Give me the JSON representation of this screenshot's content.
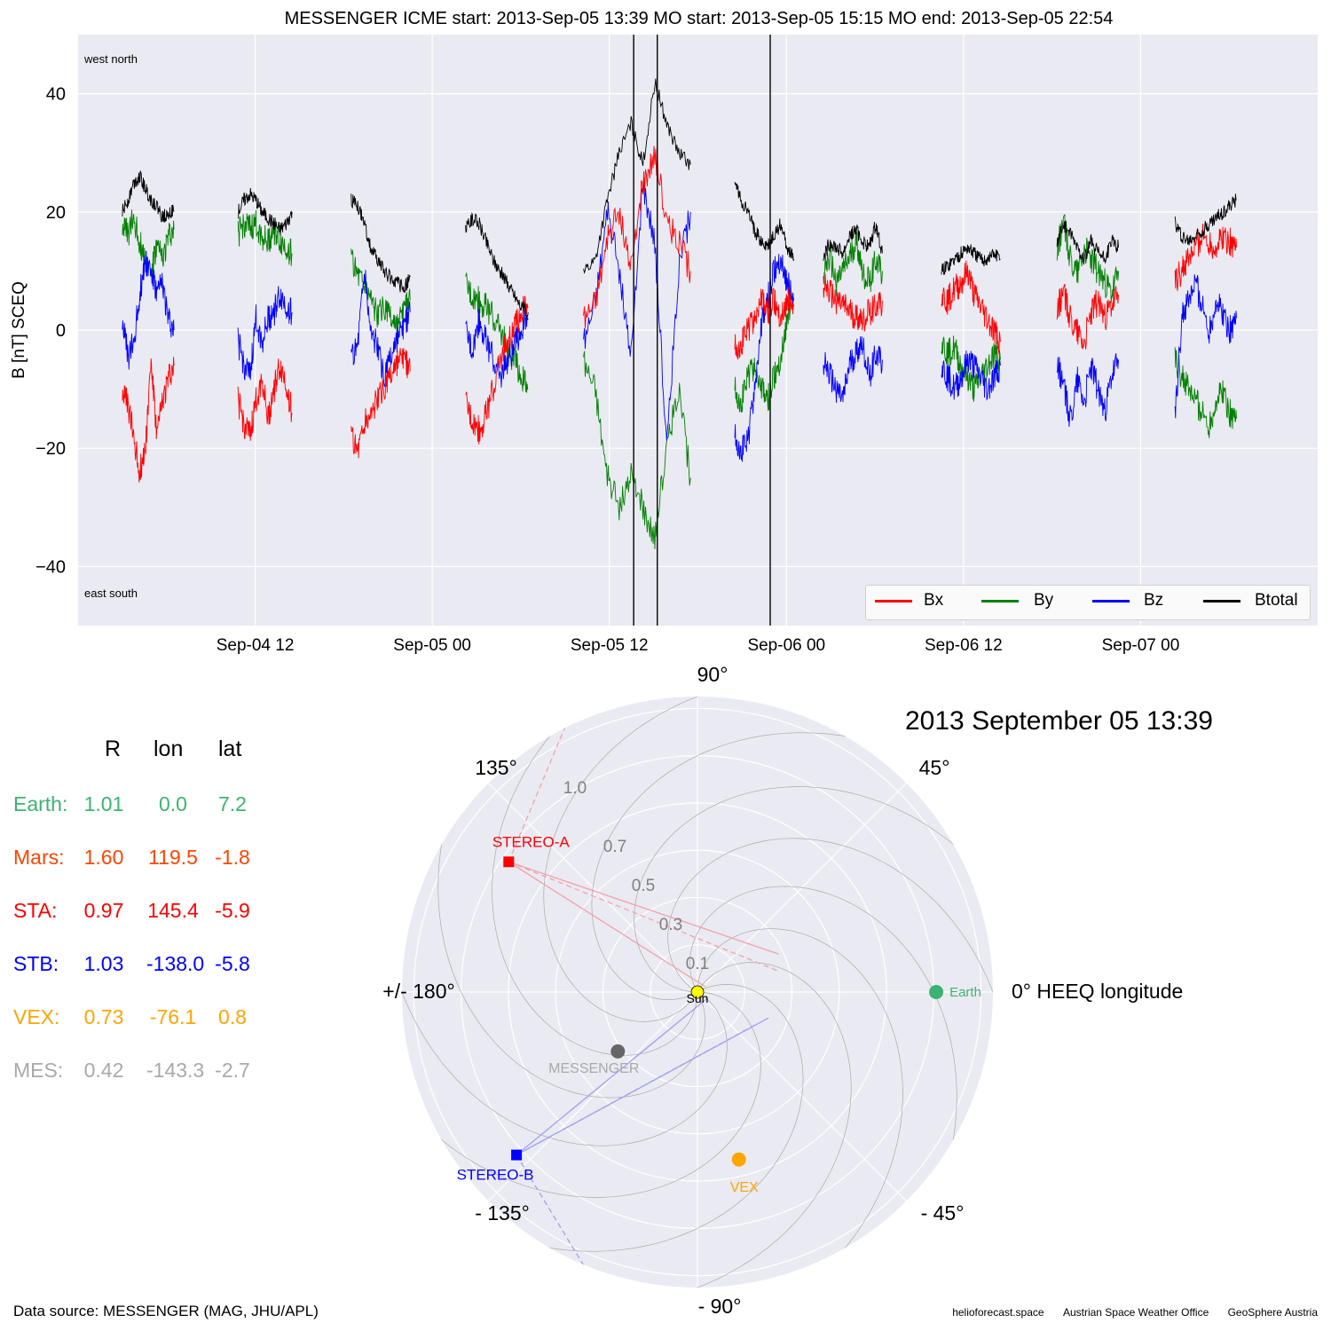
{
  "title": "MESSENGER    ICME start: 2013-Sep-05 13:39   MO start: 2013-Sep-05 15:15   MO end: 2013-Sep-05 22:54",
  "ylabel": "B [nT] SCEQ",
  "corner_labels": {
    "top": "west    north",
    "bottom": "east    south"
  },
  "legend": [
    "Bx",
    "By",
    "Bz",
    "Btotal"
  ],
  "colors": {
    "Bx": "#ff0000",
    "By": "#008000",
    "Bz": "#0000ff",
    "Btotal": "#000000",
    "Earth": "#3cb371",
    "Mars": "#ff4500",
    "STA": "#ff0000",
    "STB": "#0000ff",
    "VEX": "#ffa500",
    "MES": "#a9a9a9"
  },
  "date_title": "2013 September 05  13:39",
  "data_source": "Data source: MESSENGER (MAG, JHU/APL)",
  "credits": [
    "helioforecast.space",
    "Austrian Space Weather Office",
    "GeoSphere Austria"
  ],
  "table": {
    "headers": [
      "R",
      "lon",
      "lat"
    ],
    "rows": [
      {
        "name": "Earth:",
        "R": "1.01",
        "lon": "0.0",
        "lat": "7.2",
        "color": "#3cb371"
      },
      {
        "name": "Mars:",
        "R": "1.60",
        "lon": "119.5",
        "lat": "-1.8",
        "color": "#ff4500"
      },
      {
        "name": "STA:",
        "R": "0.97",
        "lon": "145.4",
        "lat": "-5.9",
        "color": "#ff0000"
      },
      {
        "name": "STB:",
        "R": "1.03",
        "lon": "-138.0",
        "lat": "-5.8",
        "color": "#0000ff"
      },
      {
        "name": "VEX:",
        "R": "0.73",
        "lon": "-76.1",
        "lat": "0.8",
        "color": "#ffa500"
      },
      {
        "name": "MES:",
        "R": "0.42",
        "lon": "-143.3",
        "lat": "-2.7",
        "color": "#a9a9a9"
      }
    ]
  },
  "chart_data": [
    {
      "type": "line",
      "title": "MESSENGER    ICME start: 2013-Sep-05 13:39   MO start: 2013-Sep-05 15:15   MO end: 2013-Sep-05 22:54",
      "ylabel": "B [nT] SCEQ",
      "xlabel": "",
      "x_range": [
        "2013-09-04 00:00",
        "2013-09-07 12:00"
      ],
      "xticks": [
        "Sep-04 12",
        "Sep-05 00",
        "Sep-05 12",
        "Sep-06 00",
        "Sep-06 12",
        "Sep-07 00"
      ],
      "xtick_times": [
        "2013-09-04 12:00",
        "2013-09-05 00:00",
        "2013-09-05 12:00",
        "2013-09-06 00:00",
        "2013-09-06 12:00",
        "2013-09-07 00:00"
      ],
      "ylim": [
        -50,
        50
      ],
      "yticks": [
        -40,
        -20,
        0,
        20,
        40
      ],
      "grid": true,
      "legend_position": "lower-right",
      "event_lines": [
        "2013-09-05 13:39",
        "2013-09-05 15:15",
        "2013-09-05 22:54"
      ],
      "segments": [
        {
          "start": "2013-09-04 03:00",
          "end": "2013-09-04 06:30",
          "Btotal": [
            20,
            22,
            25,
            26,
            24,
            22,
            21,
            19,
            20,
            20
          ],
          "Bx": [
            -10,
            -13,
            -18,
            -24,
            -20,
            -5,
            -18,
            -12,
            -8,
            -6
          ],
          "By": [
            18,
            16,
            19,
            15,
            12,
            10,
            14,
            12,
            16,
            17
          ],
          "Bz": [
            2,
            -5,
            -2,
            6,
            12,
            10,
            6,
            8,
            2,
            0
          ]
        },
        {
          "start": "2013-09-04 10:50",
          "end": "2013-09-04 14:30",
          "Btotal": [
            20,
            22,
            23,
            22,
            20,
            19,
            18,
            17,
            18,
            20
          ],
          "Bx": [
            -12,
            -16,
            -18,
            -12,
            -8,
            -15,
            -10,
            -6,
            -9,
            -14
          ],
          "By": [
            16,
            18,
            17,
            18,
            16,
            15,
            17,
            15,
            14,
            13
          ],
          "Bz": [
            -2,
            -6,
            -8,
            2,
            -2,
            2,
            3,
            6,
            4,
            3
          ]
        },
        {
          "start": "2013-09-04 18:30",
          "end": "2013-09-04 22:30",
          "Btotal": [
            22,
            21,
            18,
            14,
            12,
            10,
            9,
            8,
            7,
            9
          ],
          "Bx": [
            -18,
            -20,
            -16,
            -14,
            -12,
            -10,
            -8,
            -6,
            -5,
            -7
          ],
          "By": [
            12,
            10,
            8,
            6,
            2,
            4,
            2,
            0,
            3,
            5
          ],
          "Bz": [
            -5,
            -2,
            10,
            0,
            -3,
            -8,
            -5,
            -2,
            0,
            3
          ]
        },
        {
          "start": "2013-09-05 02:15",
          "end": "2013-09-05 06:30",
          "Btotal": [
            17,
            19,
            18,
            15,
            12,
            10,
            8,
            6,
            4,
            3
          ],
          "Bx": [
            -12,
            -15,
            -17,
            -14,
            -10,
            -5,
            -2,
            0,
            3,
            4
          ],
          "By": [
            8,
            6,
            5,
            4,
            2,
            0,
            -3,
            -5,
            -8,
            -10
          ],
          "Bz": [
            0,
            -3,
            2,
            -2,
            -5,
            -8,
            -5,
            -3,
            0,
            2
          ]
        },
        {
          "start": "2013-09-05 10:15",
          "end": "2013-09-05 17:30",
          "Btotal": [
            10,
            12,
            22,
            30,
            35,
            28,
            42,
            35,
            30,
            28
          ],
          "Bx": [
            2,
            5,
            15,
            20,
            10,
            25,
            30,
            18,
            15,
            10
          ],
          "By": [
            -5,
            -10,
            -25,
            -30,
            -25,
            -30,
            -35,
            -20,
            -10,
            -25
          ],
          "Bz": [
            -2,
            5,
            20,
            10,
            -5,
            25,
            15,
            -20,
            10,
            20
          ]
        },
        {
          "start": "2013-09-05 20:30",
          "end": "2013-09-06 00:30",
          "Btotal": [
            25,
            22,
            20,
            17,
            15,
            14,
            16,
            18,
            14,
            12
          ],
          "Bx": [
            -3,
            -2,
            0,
            2,
            5,
            3,
            5,
            2,
            5,
            4
          ],
          "By": [
            -10,
            -12,
            -8,
            -6,
            -10,
            -12,
            -8,
            -5,
            2,
            6
          ],
          "Bz": [
            -18,
            -20,
            -19,
            -10,
            0,
            5,
            10,
            12,
            8,
            5
          ]
        },
        {
          "start": "2013-09-06 02:30",
          "end": "2013-09-06 06:30",
          "Btotal": [
            12,
            15,
            14,
            13,
            16,
            17,
            15,
            14,
            18,
            13
          ],
          "Bx": [
            8,
            6,
            5,
            4,
            3,
            2,
            2,
            3,
            4,
            5
          ],
          "By": [
            10,
            12,
            8,
            10,
            12,
            15,
            10,
            8,
            12,
            10
          ],
          "Bz": [
            -5,
            -8,
            -10,
            -12,
            -6,
            -4,
            -2,
            -8,
            -4,
            -5
          ]
        },
        {
          "start": "2013-09-06 10:30",
          "end": "2013-09-06 14:30",
          "Btotal": [
            10,
            11,
            12,
            13,
            14,
            13,
            12,
            12,
            13,
            12
          ],
          "Bx": [
            6,
            5,
            7,
            8,
            10,
            6,
            4,
            2,
            0,
            -2
          ],
          "By": [
            -2,
            -4,
            -3,
            -6,
            -8,
            -10,
            -8,
            -6,
            -4,
            -5
          ],
          "Bz": [
            -6,
            -8,
            -10,
            -8,
            -5,
            -6,
            -8,
            -10,
            -8,
            -6
          ]
        },
        {
          "start": "2013-09-06 18:20",
          "end": "2013-09-06 22:30",
          "Btotal": [
            15,
            18,
            16,
            14,
            12,
            15,
            13,
            12,
            15,
            14
          ],
          "Bx": [
            4,
            6,
            2,
            0,
            -2,
            3,
            5,
            2,
            4,
            6
          ],
          "By": [
            14,
            18,
            12,
            10,
            14,
            12,
            10,
            8,
            6,
            10
          ],
          "Bz": [
            -5,
            -10,
            -15,
            -8,
            -12,
            -6,
            -10,
            -14,
            -8,
            -5
          ]
        },
        {
          "start": "2013-09-07 02:20",
          "end": "2013-09-07 06:30",
          "Btotal": [
            18,
            16,
            15,
            16,
            17,
            18,
            19,
            20,
            21,
            22
          ],
          "Bx": [
            8,
            10,
            12,
            14,
            16,
            15,
            14,
            16,
            15,
            14
          ],
          "By": [
            -5,
            -8,
            -10,
            -12,
            -14,
            -16,
            -12,
            -10,
            -14,
            -15
          ],
          "Bz": [
            -15,
            2,
            5,
            8,
            4,
            0,
            5,
            3,
            0,
            2
          ]
        }
      ]
    },
    {
      "type": "scatter",
      "coordinate": "polar",
      "xlabel": "0° HEEQ longitude",
      "r_ticks": [
        "0.1",
        "0.3",
        "0.5",
        "0.7",
        "1.0"
      ],
      "angle_labels": [
        "0° HEEQ longitude",
        "45°",
        "90°",
        "135°",
        "+/- 180°",
        "- 135°",
        "- 90°",
        "- 45°"
      ],
      "bodies": [
        {
          "label": "Sun",
          "r": 0.0,
          "lon": 0.0
        },
        {
          "label": "Earth",
          "r": 1.01,
          "lon": 0.0
        },
        {
          "label": "STEREO-A",
          "r": 0.97,
          "lon": 145.4
        },
        {
          "label": "STEREO-B",
          "r": 1.03,
          "lon": -138.0
        },
        {
          "label": "VEX",
          "r": 0.73,
          "lon": -76.1
        },
        {
          "label": "MESSENGER",
          "r": 0.42,
          "lon": -143.3
        }
      ]
    }
  ]
}
